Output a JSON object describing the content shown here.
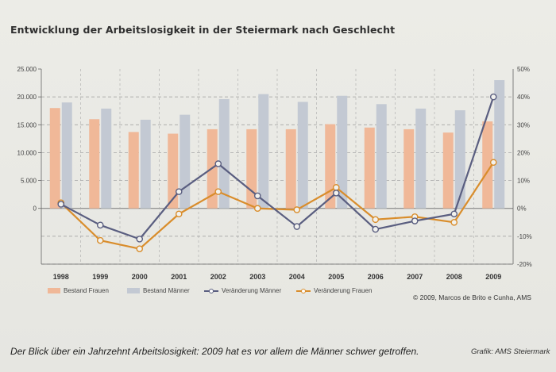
{
  "title": "Entwicklung der Arbeitslosigkeit in der Steiermark nach Geschlecht",
  "caption": "Der Blick über ein Jahrzehnt Arbeitslosigkeit: 2009 hat es vor allem die Männer schwer getroffen.",
  "source": "Grafik: AMS Steiermark",
  "copyright": "© 2009, Marcos de Brito e Cunha, AMS",
  "colors": {
    "frauen_bar": "#f0b898",
    "maenner_bar": "#c3c9d3",
    "maenner_line": "#5a5e80",
    "frauen_line": "#d98d2c"
  },
  "legend": {
    "bestand_frauen": "Bestand Frauen",
    "bestand_maenner": "Bestand Männer",
    "veraenderung_maenner": "Veränderung Männer",
    "veraenderung_frauen": "Veränderung Frauen"
  },
  "chart_data": {
    "type": "bar",
    "categories": [
      "1998",
      "1999",
      "2000",
      "2001",
      "2002",
      "2003",
      "2004",
      "2005",
      "2006",
      "2007",
      "2008",
      "2009"
    ],
    "left_axis": {
      "ylim": [
        -10000,
        25000
      ],
      "ticks": [
        25000,
        20000,
        15000,
        10000,
        5000,
        0
      ],
      "tick_labels": [
        "25.000",
        "20.000",
        "15.000",
        "10.000",
        "5.000",
        "0"
      ]
    },
    "right_axis": {
      "ylim": [
        -20,
        50
      ],
      "ticks": [
        50,
        40,
        30,
        20,
        10,
        0,
        -10,
        -20
      ],
      "tick_labels": [
        "50%",
        "40%",
        "30%",
        "20%",
        "10%",
        "0%",
        "-10%",
        "-20%"
      ]
    },
    "series": [
      {
        "name": "Bestand Frauen",
        "type": "bar",
        "axis": "left",
        "values": [
          18000,
          16000,
          13700,
          13400,
          14200,
          14200,
          14200,
          15100,
          14500,
          14200,
          13600,
          15600
        ]
      },
      {
        "name": "Bestand Männer",
        "type": "bar",
        "axis": "left",
        "values": [
          19000,
          17900,
          15900,
          16800,
          19600,
          20500,
          19100,
          20200,
          18700,
          17900,
          17600,
          23000
        ]
      },
      {
        "name": "Veränderung Männer",
        "type": "line",
        "axis": "right",
        "values": [
          1.5,
          -6,
          -11,
          6,
          16,
          4.5,
          -6.5,
          5.5,
          -7.5,
          -4.5,
          -2,
          40
        ]
      },
      {
        "name": "Veränderung Frauen",
        "type": "line",
        "axis": "right",
        "values": [
          2,
          -11.5,
          -14.5,
          -2,
          6,
          0,
          -0.5,
          7.5,
          -4,
          -3,
          -5,
          16.5
        ]
      }
    ],
    "grid": true,
    "legend_position": "bottom"
  }
}
